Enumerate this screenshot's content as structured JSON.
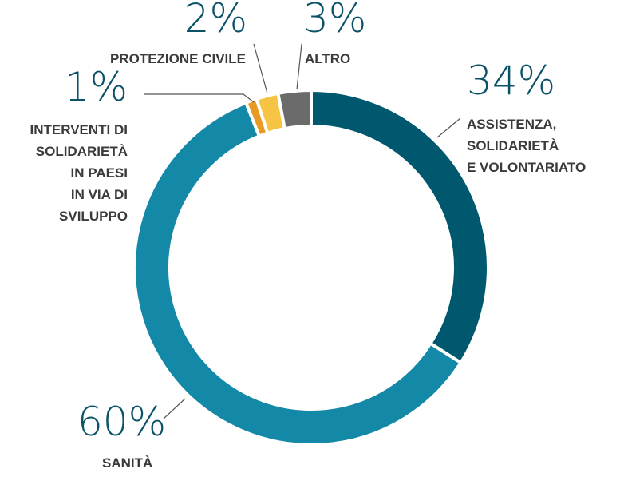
{
  "chart_data": {
    "type": "donut",
    "categories": [
      [
        "ASSISTENZA,",
        "SOLIDARIETÀ",
        "E VOLONTARIATO"
      ],
      [
        "SANITÀ"
      ],
      [
        "INTERVENTI DI",
        "SOLIDARIETÀ",
        "IN PAESI",
        "IN VIA DI",
        "SVILUPPO"
      ],
      [
        "PROTEZIONE CIVILE"
      ],
      [
        "ALTRO"
      ]
    ],
    "values": [
      34,
      60,
      1,
      2,
      3
    ],
    "value_labels": [
      "34%",
      "60%",
      "1%",
      "2%",
      "3%"
    ],
    "colors": [
      "#00586f",
      "#1489a7",
      "#e79b22",
      "#f6c443",
      "#6b6b6b"
    ]
  }
}
